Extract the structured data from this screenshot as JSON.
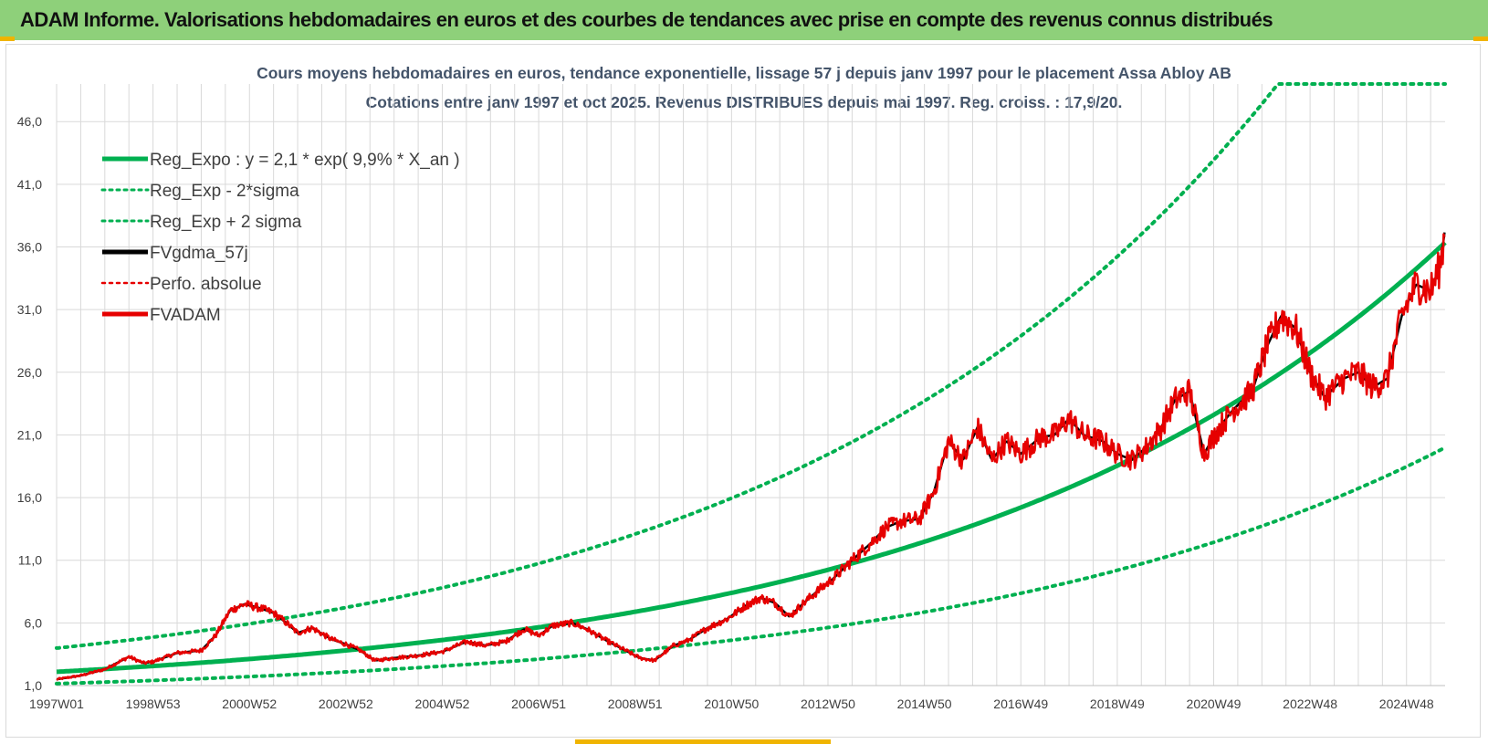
{
  "header": {
    "title": "ADAM Informe. Valorisations hebdomadaires en euros et des courbes de tendances avec prise en compte des revenus connus distribués"
  },
  "colors": {
    "header_bg": "#8ed07a",
    "reg_expo": "#00b050",
    "band": "#00b050",
    "fvgdma": "#000000",
    "perfo": "#e60000",
    "fvadam": "#e60000",
    "grid": "#d9d9d9",
    "title": "#44546a"
  },
  "chart_data": {
    "type": "line",
    "title_line1": "Cours moyens hebdomadaires en euros, tendance exponentielle, lissage 57 j depuis janv 1997 pour le placement Assa Abloy AB",
    "title_line2": "Cotations entre janv 1997 et oct 2025. Revenus DISTRIBUES depuis mai 1997. Reg. croiss. : 17,9/20.",
    "xlabel": "",
    "ylabel": "",
    "x_range": [
      1997.0,
      2025.8
    ],
    "ylim": [
      1.0,
      49.0
    ],
    "grid": true,
    "y_ticks": [
      1.0,
      6.0,
      11.0,
      16.0,
      21.0,
      26.0,
      31.0,
      36.0,
      41.0,
      46.0
    ],
    "y_tick_labels": [
      "1,0",
      "6,0",
      "11,0",
      "16,0",
      "21,0",
      "26,0",
      "31,0",
      "36,0",
      "41,0",
      "46,0"
    ],
    "x_ticks": [
      {
        "label": "1997W01",
        "t": 1997.0
      },
      {
        "label": "1998W53",
        "t": 1999.0
      },
      {
        "label": "2000W52",
        "t": 2001.0
      },
      {
        "label": "2002W52",
        "t": 2003.0
      },
      {
        "label": "2004W52",
        "t": 2005.0
      },
      {
        "label": "2006W51",
        "t": 2007.0
      },
      {
        "label": "2008W51",
        "t": 2009.0
      },
      {
        "label": "2010W50",
        "t": 2011.0
      },
      {
        "label": "2012W50",
        "t": 2013.0
      },
      {
        "label": "2014W50",
        "t": 2015.0
      },
      {
        "label": "2016W49",
        "t": 2017.0
      },
      {
        "label": "2018W49",
        "t": 2019.0
      },
      {
        "label": "2020W49",
        "t": 2021.0
      },
      {
        "label": "2022W48",
        "t": 2023.0
      },
      {
        "label": "2024W48",
        "t": 2025.0
      }
    ],
    "legend_position": "top-left",
    "regression": {
      "a": 2.1,
      "rate": 0.099,
      "t0": 1997.0,
      "upper_factor": 1.9,
      "lower_factor": 0.55
    },
    "series": [
      {
        "name": "Reg_Expo : y = 2,1 * exp( 9,9% *  X_an )",
        "style": "solid",
        "color": "#00b050"
      },
      {
        "name": "Reg_Exp - 2*sigma",
        "style": "dotted",
        "color": "#00b050"
      },
      {
        "name": "Reg_Exp + 2 sigma",
        "style": "dotted",
        "color": "#00b050"
      },
      {
        "name": "FVgdma_57j",
        "style": "solid",
        "color": "#000000"
      },
      {
        "name": "Perfo. absolue",
        "style": "dotted",
        "color": "#e60000"
      },
      {
        "name": "FVADAM",
        "style": "solid",
        "color": "#e60000"
      }
    ],
    "fvadam_points": [
      [
        1997.0,
        1.5
      ],
      [
        1997.5,
        1.8
      ],
      [
        1998.0,
        2.3
      ],
      [
        1998.5,
        3.3
      ],
      [
        1998.8,
        2.8
      ],
      [
        1999.0,
        2.9
      ],
      [
        1999.5,
        3.6
      ],
      [
        2000.0,
        3.8
      ],
      [
        2000.3,
        5.0
      ],
      [
        2000.6,
        7.0
      ],
      [
        2000.9,
        7.5
      ],
      [
        2001.2,
        7.2
      ],
      [
        2001.5,
        6.8
      ],
      [
        2001.8,
        5.9
      ],
      [
        2002.0,
        5.2
      ],
      [
        2002.3,
        5.6
      ],
      [
        2002.7,
        4.7
      ],
      [
        2003.0,
        4.3
      ],
      [
        2003.3,
        3.8
      ],
      [
        2003.6,
        3.0
      ],
      [
        2004.0,
        3.2
      ],
      [
        2004.5,
        3.4
      ],
      [
        2005.0,
        3.7
      ],
      [
        2005.5,
        4.5
      ],
      [
        2005.9,
        4.2
      ],
      [
        2006.3,
        4.5
      ],
      [
        2006.7,
        5.5
      ],
      [
        2007.0,
        5.0
      ],
      [
        2007.3,
        5.8
      ],
      [
        2007.7,
        6.0
      ],
      [
        2008.0,
        5.5
      ],
      [
        2008.4,
        4.6
      ],
      [
        2008.8,
        3.8
      ],
      [
        2009.1,
        3.2
      ],
      [
        2009.4,
        3.0
      ],
      [
        2009.8,
        4.2
      ],
      [
        2010.1,
        4.6
      ],
      [
        2010.5,
        5.6
      ],
      [
        2010.9,
        6.3
      ],
      [
        2011.3,
        7.4
      ],
      [
        2011.6,
        8.0
      ],
      [
        2011.9,
        7.6
      ],
      [
        2012.2,
        6.5
      ],
      [
        2012.5,
        7.6
      ],
      [
        2012.8,
        8.6
      ],
      [
        2013.1,
        9.5
      ],
      [
        2013.5,
        11.0
      ],
      [
        2013.9,
        12.4
      ],
      [
        2014.2,
        13.6
      ],
      [
        2014.5,
        14.1
      ],
      [
        2014.9,
        14.3
      ],
      [
        2015.2,
        16.5
      ],
      [
        2015.5,
        20.5
      ],
      [
        2015.8,
        19.0
      ],
      [
        2016.1,
        21.6
      ],
      [
        2016.4,
        19.0
      ],
      [
        2016.7,
        20.5
      ],
      [
        2017.0,
        19.5
      ],
      [
        2017.4,
        20.8
      ],
      [
        2017.7,
        21.0
      ],
      [
        2018.0,
        22.3
      ],
      [
        2018.3,
        21.0
      ],
      [
        2018.7,
        20.5
      ],
      [
        2019.0,
        19.5
      ],
      [
        2019.3,
        19.0
      ],
      [
        2019.6,
        20.0
      ],
      [
        2019.9,
        21.5
      ],
      [
        2020.2,
        23.8
      ],
      [
        2020.5,
        24.5
      ],
      [
        2020.8,
        19.5
      ],
      [
        2021.1,
        21.5
      ],
      [
        2021.4,
        23.0
      ],
      [
        2021.8,
        24.5
      ],
      [
        2022.1,
        28.0
      ],
      [
        2022.4,
        30.5
      ],
      [
        2022.7,
        29.5
      ],
      [
        2023.0,
        26.0
      ],
      [
        2023.3,
        24.0
      ],
      [
        2023.7,
        25.5
      ],
      [
        2024.0,
        26.0
      ],
      [
        2024.3,
        24.8
      ],
      [
        2024.6,
        25.5
      ],
      [
        2024.9,
        30.5
      ],
      [
        2025.2,
        33.0
      ],
      [
        2025.5,
        32.5
      ],
      [
        2025.7,
        34.5
      ],
      [
        2025.8,
        37.5
      ]
    ]
  }
}
